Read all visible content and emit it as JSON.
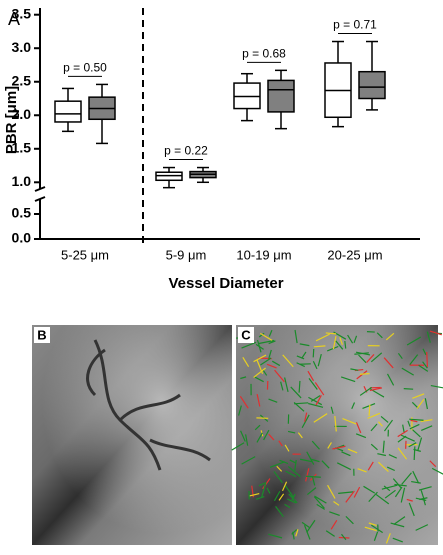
{
  "chart_data": {
    "type": "box",
    "title": "A",
    "ylabel": "PBR [μm]",
    "xlabel": "Vessel Diameter",
    "categories": [
      "5-25 μm",
      "5-9 μm",
      "10-19 μm",
      "20-25 μm"
    ],
    "p_labels": [
      "p = 0.50",
      "p = 0.22",
      "p = 0.68",
      "p = 0.71"
    ],
    "series": [
      {
        "color": "#ffffff",
        "values": [
          {
            "min": 1.76,
            "q1": 1.9,
            "median": 2.02,
            "q3": 2.21,
            "max": 2.4
          },
          {
            "min": 0.92,
            "q1": 1.03,
            "median": 1.1,
            "q3": 1.15,
            "max": 1.22
          },
          {
            "min": 1.92,
            "q1": 2.1,
            "median": 2.28,
            "q3": 2.48,
            "max": 2.62
          },
          {
            "min": 1.83,
            "q1": 1.97,
            "median": 2.37,
            "q3": 2.78,
            "max": 3.1
          }
        ]
      },
      {
        "color": "#808080",
        "values": [
          {
            "min": 1.58,
            "q1": 1.94,
            "median": 2.1,
            "q3": 2.27,
            "max": 2.46
          },
          {
            "min": 1.0,
            "q1": 1.07,
            "median": 1.12,
            "q3": 1.16,
            "max": 1.22
          },
          {
            "min": 1.8,
            "q1": 2.05,
            "median": 2.38,
            "q3": 2.52,
            "max": 2.67
          },
          {
            "min": 2.08,
            "q1": 2.25,
            "median": 2.42,
            "q3": 2.65,
            "max": 3.1
          }
        ]
      }
    ],
    "ylim": [
      0,
      3.6
    ],
    "ybreak": [
      0.8,
      0.9
    ],
    "yticks": [
      {
        "value": 0,
        "label": "0.0"
      },
      0.5,
      {
        "value": 1,
        "label": "1.0"
      },
      1.5,
      {
        "value": 2,
        "label": "2.0"
      },
      2.5,
      {
        "value": 3,
        "label": "3.0"
      },
      3.5
    ]
  },
  "panels": [
    {
      "label": "B"
    },
    {
      "label": "C"
    }
  ]
}
